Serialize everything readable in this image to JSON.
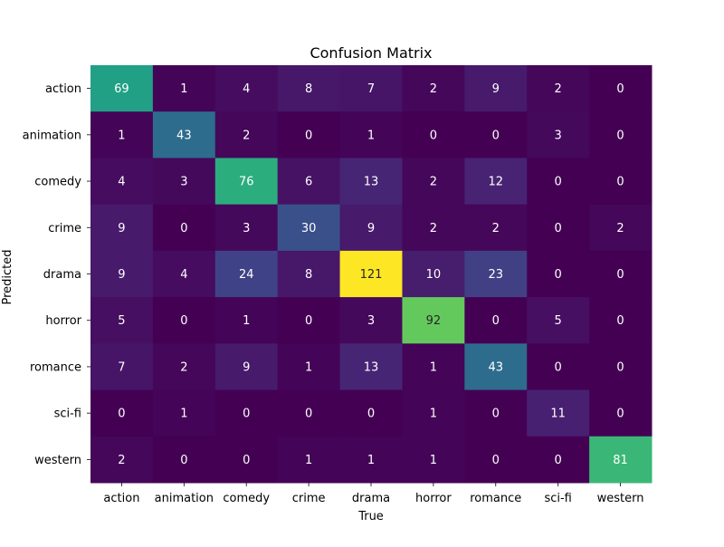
{
  "chart_data": {
    "type": "heatmap",
    "title": "Confusion Matrix",
    "xlabel": "True",
    "ylabel": "Predicted",
    "x_categories": [
      "action",
      "animation",
      "comedy",
      "crime",
      "drama",
      "horror",
      "romance",
      "sci-fi",
      "western"
    ],
    "y_categories": [
      "action",
      "animation",
      "comedy",
      "crime",
      "drama",
      "horror",
      "romance",
      "sci-fi",
      "western"
    ],
    "matrix": [
      [
        69,
        1,
        4,
        8,
        7,
        2,
        9,
        2,
        0
      ],
      [
        1,
        43,
        2,
        0,
        1,
        0,
        0,
        3,
        0
      ],
      [
        4,
        3,
        76,
        6,
        13,
        2,
        12,
        0,
        0
      ],
      [
        9,
        0,
        3,
        30,
        9,
        2,
        2,
        0,
        2
      ],
      [
        9,
        4,
        24,
        8,
        121,
        10,
        23,
        0,
        0
      ],
      [
        5,
        0,
        1,
        0,
        3,
        92,
        0,
        5,
        0
      ],
      [
        7,
        2,
        9,
        1,
        13,
        1,
        43,
        0,
        0
      ],
      [
        0,
        1,
        0,
        0,
        0,
        1,
        0,
        11,
        0
      ],
      [
        2,
        0,
        0,
        1,
        1,
        1,
        0,
        0,
        81
      ]
    ],
    "colormap": "viridis",
    "value_range": [
      0,
      121
    ],
    "colorbar": false,
    "grid": false,
    "annotations": "cell values shown"
  }
}
